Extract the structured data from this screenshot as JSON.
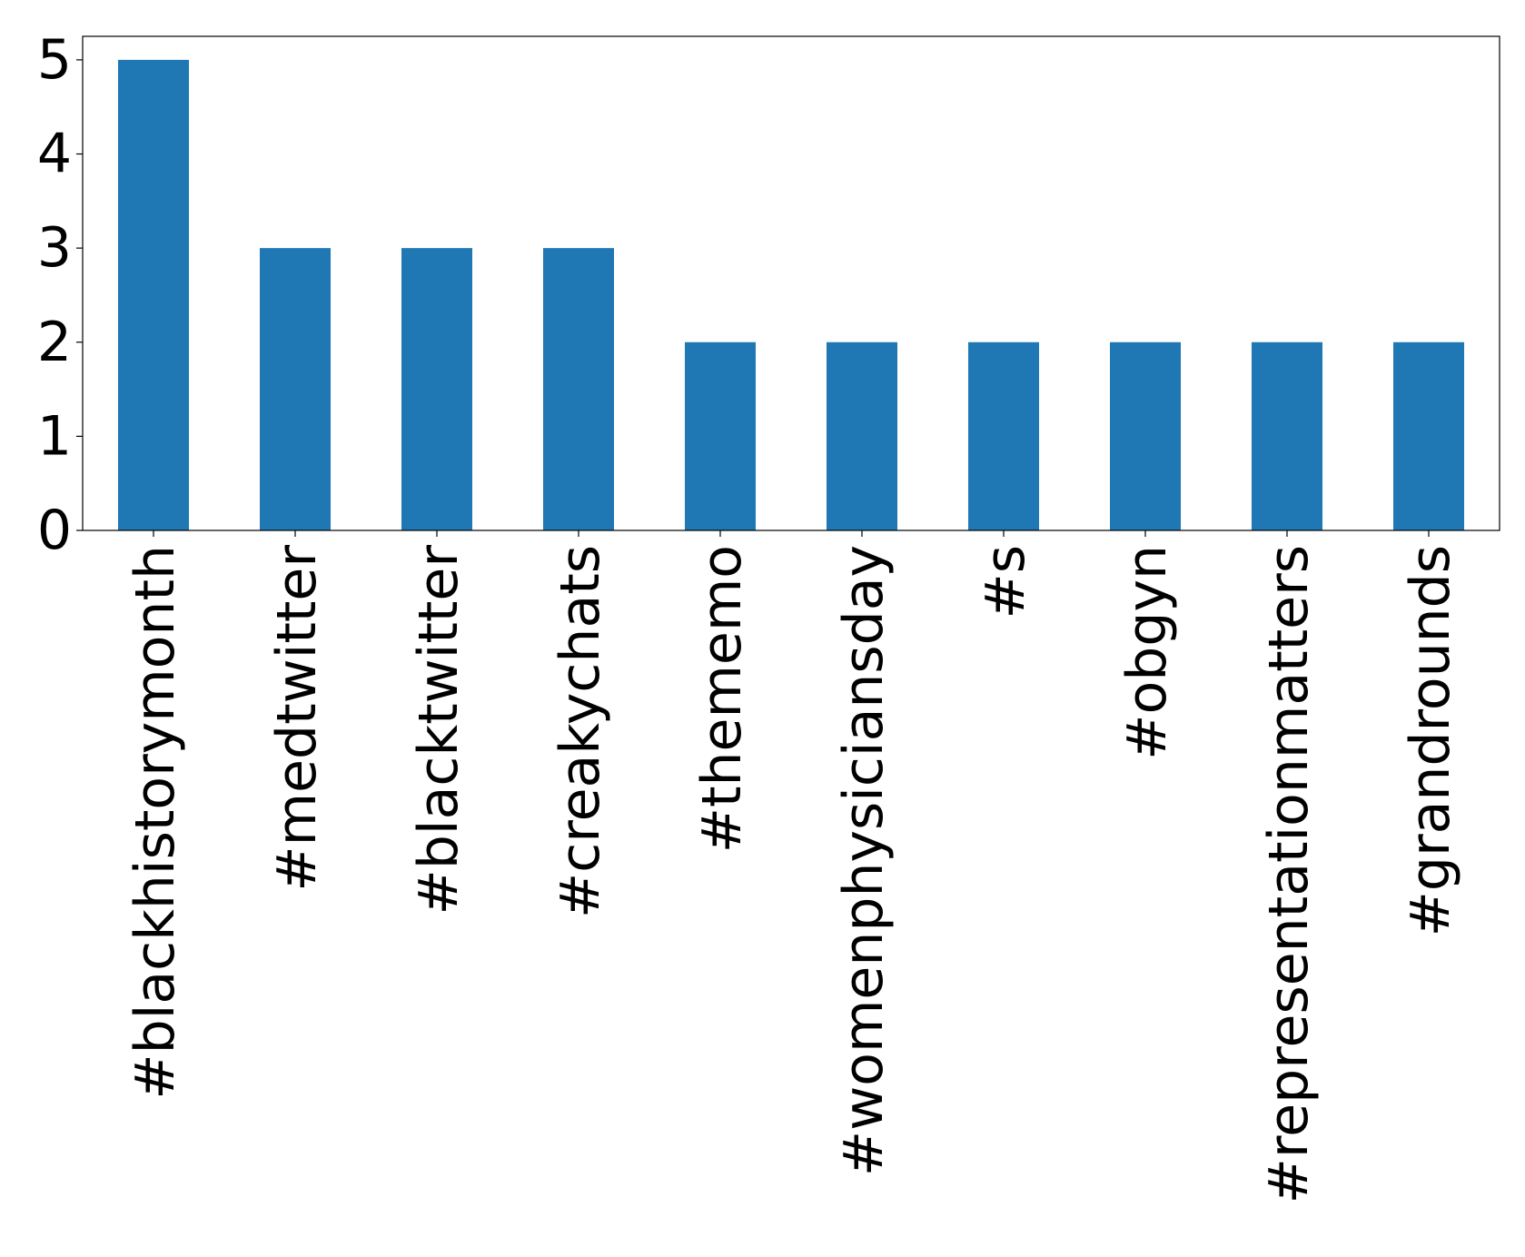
{
  "chart_data": {
    "type": "bar",
    "title": "",
    "xlabel": "",
    "ylabel": "",
    "categories": [
      "#blackhistorymonth",
      "#medtwitter",
      "#blacktwitter",
      "#creakychats",
      "#thememo",
      "#womenphysiciansday",
      "#s",
      "#obgyn",
      "#representationmatters",
      "#grandrounds"
    ],
    "values": [
      5,
      3,
      3,
      3,
      2,
      2,
      2,
      2,
      2,
      2
    ],
    "ylim": [
      0,
      5.25
    ],
    "yticks": [
      0,
      1,
      2,
      3,
      4,
      5
    ],
    "bar_color": "#1f77b4",
    "grid": false,
    "legend": "none"
  }
}
